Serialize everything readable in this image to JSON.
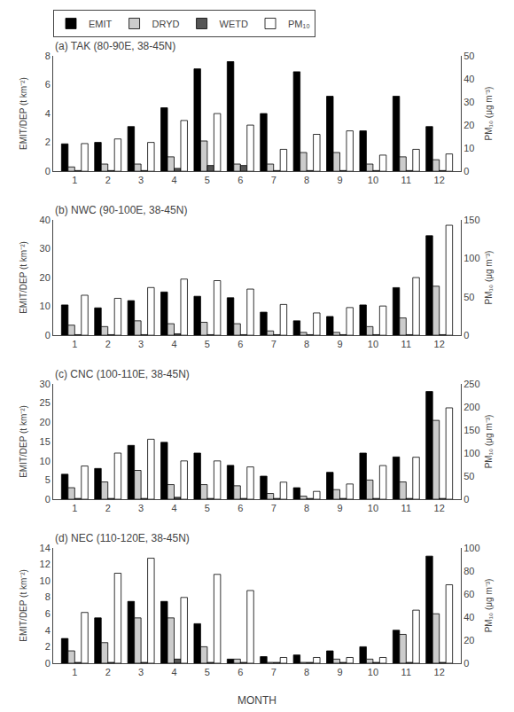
{
  "chart_data": [
    {
      "type": "bar",
      "title": "(a) TAK (80-90E, 38-45N)",
      "x": [
        1,
        2,
        3,
        4,
        5,
        6,
        7,
        8,
        9,
        10,
        11,
        12
      ],
      "xlim": [
        0.35,
        12.65
      ],
      "xticks": [
        1,
        2,
        3,
        4,
        5,
        6,
        7,
        8,
        9,
        10,
        11,
        12
      ],
      "ylabel": "EMIT/DEP (t km⁻²)",
      "y2label": "PM₁₀ (μg m⁻³)",
      "ylim": [
        0,
        8
      ],
      "yticks": [
        0,
        2,
        4,
        6,
        8
      ],
      "y2lim": [
        0,
        50
      ],
      "y2ticks": [
        0,
        10,
        20,
        30,
        40,
        50
      ],
      "grid": false,
      "legend": "upper left",
      "series": [
        {
          "name": "EMIT",
          "color": "#000000",
          "values": [
            1.9,
            2.0,
            3.1,
            4.4,
            7.1,
            7.6,
            4.0,
            6.9,
            5.2,
            2.8,
            5.2,
            3.1
          ]
        },
        {
          "name": "DRYD",
          "color": "#cccccc",
          "values": [
            0.3,
            0.5,
            0.5,
            1.0,
            2.1,
            0.5,
            0.5,
            1.3,
            1.3,
            0.5,
            1.0,
            0.8
          ]
        },
        {
          "name": "WETD",
          "color": "#555555",
          "values": [
            0.05,
            0.05,
            0.05,
            0.2,
            0.4,
            0.4,
            0.05,
            0.05,
            0.05,
            0.05,
            0.05,
            0.05
          ]
        },
        {
          "name": "PM₁₀",
          "color": "#ffffff",
          "axis": "y2",
          "values": [
            12.0,
            14.0,
            12.5,
            22.0,
            25.0,
            20.0,
            9.5,
            16.0,
            17.5,
            7.0,
            9.5,
            7.5
          ]
        }
      ]
    },
    {
      "type": "bar",
      "title": "(b) NWC (90-100E, 38-45N)",
      "x": [
        1,
        2,
        3,
        4,
        5,
        6,
        7,
        8,
        9,
        10,
        11,
        12
      ],
      "xlim": [
        0.35,
        12.65
      ],
      "xticks": [
        1,
        2,
        3,
        4,
        5,
        6,
        7,
        8,
        9,
        10,
        11,
        12
      ],
      "ylabel": "EMIT/DEP (t km⁻²)",
      "y2label": "PM₁₀ (μg m⁻³)",
      "ylim": [
        0,
        40
      ],
      "yticks": [
        0,
        10,
        20,
        30,
        40
      ],
      "y2lim": [
        0,
        150
      ],
      "y2ticks": [
        0,
        50,
        100,
        150
      ],
      "grid": false,
      "series": [
        {
          "name": "EMIT",
          "color": "#000000",
          "values": [
            10.5,
            9.5,
            12.0,
            15.0,
            13.5,
            13.0,
            8.0,
            5.0,
            6.5,
            10.5,
            16.5,
            34.5
          ]
        },
        {
          "name": "DRYD",
          "color": "#cccccc",
          "values": [
            3.5,
            3.0,
            5.0,
            4.0,
            4.5,
            4.0,
            1.5,
            1.0,
            1.0,
            3.0,
            6.0,
            17.0
          ]
        },
        {
          "name": "WETD",
          "color": "#555555",
          "values": [
            0.2,
            0.2,
            0.2,
            0.5,
            0.2,
            0.2,
            0.2,
            0.2,
            0.2,
            0.2,
            0.2,
            0.2
          ]
        },
        {
          "name": "PM₁₀",
          "color": "#ffffff",
          "axis": "y2",
          "values": [
            52.0,
            48.0,
            62.0,
            73.0,
            71.0,
            60.0,
            40.0,
            29.0,
            36.0,
            38.0,
            75.0,
            143.0
          ]
        }
      ]
    },
    {
      "type": "bar",
      "title": "(c) CNC (100-110E, 38-45N)",
      "x": [
        1,
        2,
        3,
        4,
        5,
        6,
        7,
        8,
        9,
        10,
        11,
        12
      ],
      "xlim": [
        0.35,
        12.65
      ],
      "xticks": [
        1,
        2,
        3,
        4,
        5,
        6,
        7,
        8,
        9,
        10,
        11,
        12
      ],
      "ylabel": "EMIT/DEP (t km⁻²)",
      "y2label": "PM₁₀ (μg m⁻³)",
      "ylim": [
        0,
        30
      ],
      "yticks": [
        0,
        5,
        10,
        15,
        20,
        25,
        30
      ],
      "y2lim": [
        0,
        250
      ],
      "y2ticks": [
        0,
        50,
        100,
        150,
        200,
        250
      ],
      "grid": false,
      "series": [
        {
          "name": "EMIT",
          "color": "#000000",
          "values": [
            6.5,
            8.0,
            14.0,
            14.8,
            12.0,
            8.8,
            6.0,
            3.0,
            7.0,
            12.0,
            11.0,
            28.0
          ]
        },
        {
          "name": "DRYD",
          "color": "#cccccc",
          "values": [
            3.0,
            4.5,
            7.5,
            3.8,
            3.8,
            3.5,
            1.5,
            0.8,
            2.5,
            5.0,
            4.5,
            20.5
          ]
        },
        {
          "name": "WETD",
          "color": "#555555",
          "values": [
            0.2,
            0.2,
            0.2,
            0.5,
            0.2,
            0.2,
            0.2,
            0.2,
            0.2,
            0.2,
            0.2,
            0.2
          ]
        },
        {
          "name": "PM₁₀",
          "color": "#ffffff",
          "axis": "y2",
          "values": [
            72.0,
            100.0,
            130.0,
            83.0,
            83.0,
            70.0,
            37.0,
            17.0,
            33.0,
            73.0,
            91.0,
            198.0
          ]
        }
      ]
    },
    {
      "type": "bar",
      "title": "(d) NEC (110-120E, 38-45N)",
      "x": [
        1,
        2,
        3,
        4,
        5,
        6,
        7,
        8,
        9,
        10,
        11,
        12
      ],
      "xlim": [
        0.35,
        12.65
      ],
      "xticks": [
        1,
        2,
        3,
        4,
        5,
        6,
        7,
        8,
        9,
        10,
        11,
        12
      ],
      "xlabel": "MONTH",
      "ylabel": "EMIT/DEP (t km⁻²)",
      "y2label": "PM₁₀ (μg m⁻³)",
      "ylim": [
        0,
        14
      ],
      "yticks": [
        0,
        2,
        4,
        6,
        8,
        10,
        12,
        14
      ],
      "y2lim": [
        0,
        100
      ],
      "y2ticks": [
        0,
        20,
        40,
        60,
        80,
        100
      ],
      "grid": false,
      "series": [
        {
          "name": "EMIT",
          "color": "#000000",
          "values": [
            3.0,
            5.5,
            7.5,
            7.5,
            4.8,
            0.5,
            0.8,
            1.0,
            1.5,
            2.0,
            4.0,
            13.0
          ]
        },
        {
          "name": "DRYD",
          "color": "#cccccc",
          "values": [
            1.5,
            2.5,
            5.5,
            5.5,
            2.0,
            0.5,
            0.1,
            0.1,
            0.5,
            0.5,
            3.5,
            6.0
          ]
        },
        {
          "name": "WETD",
          "color": "#555555",
          "values": [
            0.1,
            0.1,
            0.1,
            0.5,
            0.1,
            0.1,
            0.1,
            0.1,
            0.1,
            0.1,
            0.1,
            0.1
          ]
        },
        {
          "name": "PM₁₀",
          "color": "#ffffff",
          "axis": "y2",
          "values": [
            44.0,
            78.0,
            91.0,
            57.0,
            77.0,
            63.0,
            5.0,
            5.0,
            5.0,
            5.0,
            46.0,
            68.0
          ]
        }
      ]
    }
  ]
}
